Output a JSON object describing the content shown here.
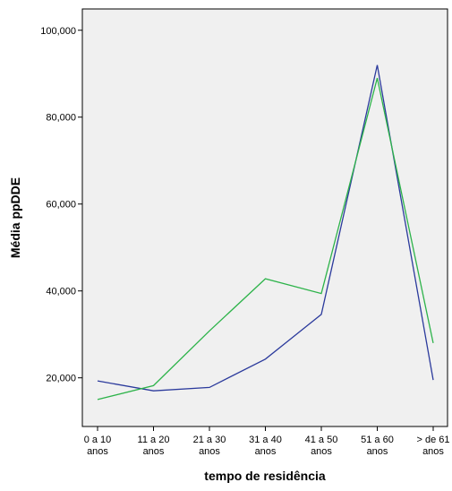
{
  "chart_data": {
    "type": "line",
    "title": "",
    "xlabel": "tempo de residência",
    "ylabel": "Média ppDDE",
    "categories": [
      [
        "0 a 10",
        "anos"
      ],
      [
        "11 a 20",
        "anos"
      ],
      [
        "21 a 30",
        "anos"
      ],
      [
        "31 a 40",
        "anos"
      ],
      [
        "41 a 50",
        "anos"
      ],
      [
        "51 a 60",
        "anos"
      ],
      [
        "> de 61",
        "anos"
      ]
    ],
    "yticks": [
      "20,000",
      "40,000",
      "60,000",
      "80,000",
      "100,000"
    ],
    "ytick_values": [
      20,
      40,
      60,
      80,
      100
    ],
    "ylim": [
      8.8,
      104.9
    ],
    "grid": false,
    "legend": "none",
    "background_color": "#f0f0f0",
    "series": [
      {
        "color": "#2b3a9c",
        "values": [
          19.3,
          17.0,
          17.8,
          24.3,
          34.6,
          92.0,
          19.5
        ]
      },
      {
        "color": "#2db34a",
        "values": [
          15.0,
          18.2,
          30.8,
          42.8,
          39.4,
          89.0,
          28.0
        ]
      }
    ]
  }
}
